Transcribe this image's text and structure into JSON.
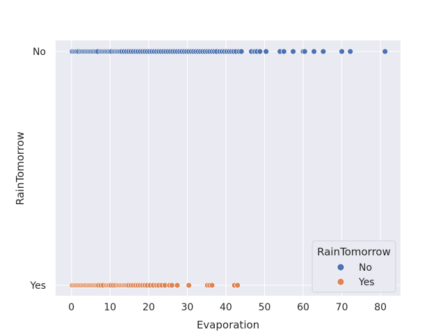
{
  "chart_data": {
    "type": "scatter",
    "xlabel": "Evaporation",
    "ylabel": "RainTomorrow",
    "xlim": [
      -4.1,
      85.2
    ],
    "xticks": [
      0,
      10,
      20,
      30,
      40,
      50,
      60,
      70,
      80
    ],
    "categories": [
      "No",
      "Yes"
    ],
    "grid": true,
    "legend": {
      "title": "RainTomorrow",
      "placement": "bottom-right"
    },
    "colors": {
      "No": "#4c72b0",
      "Yes": "#dd8452",
      "background": "#eaeaf2",
      "grid": "#ffffff"
    },
    "series": [
      {
        "name": "No",
        "y": "No",
        "x": [
          0.2,
          0.6,
          1.0,
          1.4,
          1.8,
          2.4,
          2.8,
          3.2,
          3.6,
          4.0,
          4.4,
          4.8,
          5.2,
          5.6,
          6.0,
          6.4,
          6.8,
          7.6,
          8.0,
          8.4,
          8.8,
          9.2,
          9.6,
          10.0,
          10.4,
          11.0,
          11.4,
          11.8,
          12.2,
          12.6,
          13.0,
          13.6,
          14.2,
          14.8,
          15.4,
          16.0,
          16.6,
          17.2,
          17.8,
          18.4,
          19.0,
          19.6,
          20.2,
          20.8,
          21.4,
          22.0,
          22.6,
          23.2,
          23.8,
          24.4,
          25.0,
          25.6,
          26.2,
          26.8,
          27.4,
          28.0,
          28.6,
          29.2,
          29.8,
          30.4,
          31.0,
          31.6,
          32.2,
          32.8,
          33.4,
          34.0,
          34.6,
          35.2,
          35.8,
          36.4,
          37.0,
          37.6,
          38.4,
          39.0,
          39.6,
          40.2,
          40.8,
          41.4,
          42.0,
          42.6,
          43.4,
          44.0,
          46.6,
          47.4,
          48.0,
          48.8,
          50.4,
          54.0,
          55.0,
          57.4,
          60.0,
          60.4,
          62.8,
          65.2,
          70.0,
          72.2,
          81.2
        ]
      },
      {
        "name": "Yes",
        "y": "Yes",
        "x": [
          0.2,
          0.6,
          1.0,
          1.4,
          1.8,
          2.2,
          2.6,
          3.0,
          3.4,
          3.8,
          4.2,
          4.6,
          5.0,
          5.4,
          5.8,
          6.2,
          6.6,
          7.0,
          7.6,
          8.2,
          9.0,
          9.4,
          9.8,
          10.2,
          10.8,
          11.4,
          12.0,
          12.4,
          12.8,
          13.2,
          13.6,
          14.0,
          14.4,
          14.8,
          15.4,
          16.0,
          16.6,
          17.2,
          17.8,
          18.4,
          19.0,
          19.6,
          20.4,
          21.2,
          22.0,
          22.6,
          23.4,
          24.2,
          25.4,
          26.0,
          27.4,
          30.4,
          35.2,
          35.8,
          36.4,
          42.2,
          43.0
        ]
      }
    ]
  }
}
